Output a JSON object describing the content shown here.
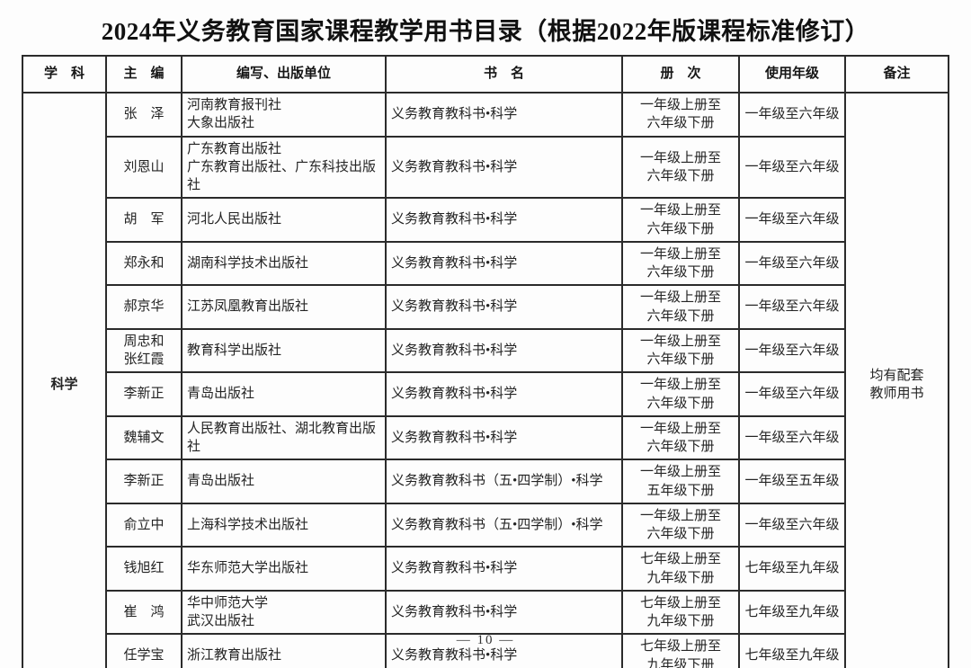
{
  "page": {
    "title": "2024年义务教育国家课程教学用书目录（根据2022年版课程标准修订）",
    "footer": "—  10  —"
  },
  "table": {
    "headers": {
      "subject": "学　科",
      "editor": "主　编",
      "publisher": "编写、出版单位",
      "book": "书　名",
      "volume": "册　次",
      "grade": "使用年级",
      "note": "备注"
    },
    "subject": "科学",
    "note": "均有配套\n教师用书",
    "rows": [
      {
        "editor": "张　泽",
        "publisher": "河南教育报刊社\n大象出版社",
        "book": "义务教育教科书•科学",
        "volume": "一年级上册至\n六年级下册",
        "grade": "一年级至六年级"
      },
      {
        "editor": "刘恩山",
        "publisher": "广东教育出版社\n广东教育出版社、广东科技出版社",
        "book": "义务教育教科书•科学",
        "volume": "一年级上册至\n六年级下册",
        "grade": "一年级至六年级"
      },
      {
        "editor": "胡　军",
        "publisher": "河北人民出版社",
        "book": "义务教育教科书•科学",
        "volume": "一年级上册至\n六年级下册",
        "grade": "一年级至六年级"
      },
      {
        "editor": "郑永和",
        "publisher": "湖南科学技术出版社",
        "book": "义务教育教科书•科学",
        "volume": "一年级上册至\n六年级下册",
        "grade": "一年级至六年级"
      },
      {
        "editor": "郝京华",
        "publisher": "江苏凤凰教育出版社",
        "book": "义务教育教科书•科学",
        "volume": "一年级上册至\n六年级下册",
        "grade": "一年级至六年级"
      },
      {
        "editor": "周忠和\n张红霞",
        "publisher": "教育科学出版社",
        "book": "义务教育教科书•科学",
        "volume": "一年级上册至\n六年级下册",
        "grade": "一年级至六年级"
      },
      {
        "editor": "李新正",
        "publisher": "青岛出版社",
        "book": "义务教育教科书•科学",
        "volume": "一年级上册至\n六年级下册",
        "grade": "一年级至六年级"
      },
      {
        "editor": "魏辅文",
        "publisher": "人民教育出版社、湖北教育出版社",
        "book": "义务教育教科书•科学",
        "volume": "一年级上册至\n六年级下册",
        "grade": "一年级至六年级"
      },
      {
        "editor": "李新正",
        "publisher": "青岛出版社",
        "book": "义务教育教科书（五•四学制）•科学",
        "volume": "一年级上册至\n五年级下册",
        "grade": "一年级至五年级"
      },
      {
        "editor": "俞立中",
        "publisher": "上海科学技术出版社",
        "book": "义务教育教科书（五•四学制）•科学",
        "volume": "一年级上册至\n六年级下册",
        "grade": "一年级至六年级"
      },
      {
        "editor": "钱旭红",
        "publisher": "华东师范大学出版社",
        "book": "义务教育教科书•科学",
        "volume": "七年级上册至\n九年级下册",
        "grade": "七年级至九年级"
      },
      {
        "editor": "崔　鸿",
        "publisher": "华中师范大学\n武汉出版社",
        "book": "义务教育教科书•科学",
        "volume": "七年级上册至\n九年级下册",
        "grade": "七年级至九年级"
      },
      {
        "editor": "任学宝",
        "publisher": "浙江教育出版社",
        "book": "义务教育教科书•科学",
        "volume": "七年级上册至\n九年级下册",
        "grade": "七年级至九年级"
      }
    ]
  }
}
